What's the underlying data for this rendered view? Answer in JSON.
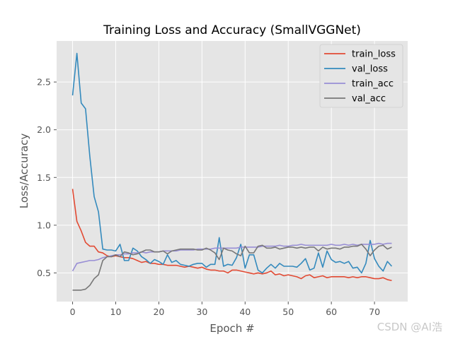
{
  "chart_data": {
    "type": "line",
    "title": "Training Loss and Accuracy (SmallVGGNet)",
    "xlabel": "Epoch #",
    "ylabel": "Loss/Accuracy",
    "xlim": [
      -3.7,
      77.7
    ],
    "ylim": [
      0.2,
      2.93
    ],
    "xticks": [
      0,
      10,
      20,
      30,
      40,
      50,
      60,
      70
    ],
    "xtick_labels": [
      "0",
      "10",
      "20",
      "30",
      "40",
      "50",
      "60",
      "70"
    ],
    "yticks": [
      0.5,
      1.0,
      1.5,
      2.0,
      2.5
    ],
    "ytick_labels": [
      "0.5",
      "1.0",
      "1.5",
      "2.0",
      "2.5"
    ],
    "grid": true,
    "legend_position": "top-right",
    "x": [
      0,
      1,
      2,
      3,
      4,
      5,
      6,
      7,
      8,
      9,
      10,
      11,
      12,
      13,
      14,
      15,
      16,
      17,
      18,
      19,
      20,
      21,
      22,
      23,
      24,
      25,
      26,
      27,
      28,
      29,
      30,
      31,
      32,
      33,
      34,
      35,
      36,
      37,
      38,
      39,
      40,
      41,
      42,
      43,
      44,
      45,
      46,
      47,
      48,
      49,
      50,
      51,
      52,
      53,
      54,
      55,
      56,
      57,
      58,
      59,
      60,
      61,
      62,
      63,
      64,
      65,
      66,
      67,
      68,
      69,
      70,
      71,
      72,
      73,
      74
    ],
    "series": [
      {
        "name": "train_loss",
        "color": "#E24A33",
        "values": [
          1.38,
          1.04,
          0.94,
          0.82,
          0.78,
          0.78,
          0.72,
          0.71,
          0.68,
          0.67,
          0.68,
          0.67,
          0.66,
          0.66,
          0.65,
          0.63,
          0.61,
          0.62,
          0.6,
          0.6,
          0.59,
          0.59,
          0.58,
          0.58,
          0.58,
          0.57,
          0.56,
          0.57,
          0.56,
          0.55,
          0.56,
          0.54,
          0.53,
          0.53,
          0.52,
          0.52,
          0.5,
          0.53,
          0.53,
          0.52,
          0.51,
          0.5,
          0.49,
          0.5,
          0.49,
          0.5,
          0.52,
          0.48,
          0.49,
          0.47,
          0.48,
          0.47,
          0.46,
          0.44,
          0.47,
          0.48,
          0.45,
          0.46,
          0.47,
          0.45,
          0.46,
          0.46,
          0.46,
          0.46,
          0.45,
          0.46,
          0.45,
          0.46,
          0.46,
          0.45,
          0.44,
          0.44,
          0.45,
          0.43,
          0.42
        ]
      },
      {
        "name": "val_loss",
        "color": "#348ABD",
        "values": [
          2.36,
          2.8,
          2.28,
          2.22,
          1.72,
          1.3,
          1.14,
          0.75,
          0.74,
          0.74,
          0.73,
          0.8,
          0.63,
          0.63,
          0.76,
          0.73,
          0.67,
          0.64,
          0.6,
          0.64,
          0.62,
          0.59,
          0.69,
          0.61,
          0.63,
          0.59,
          0.58,
          0.57,
          0.59,
          0.6,
          0.6,
          0.56,
          0.59,
          0.59,
          0.87,
          0.57,
          0.59,
          0.58,
          0.66,
          0.8,
          0.55,
          0.69,
          0.69,
          0.53,
          0.5,
          0.55,
          0.59,
          0.55,
          0.6,
          0.57,
          0.57,
          0.57,
          0.56,
          0.6,
          0.65,
          0.53,
          0.55,
          0.71,
          0.56,
          0.73,
          0.64,
          0.61,
          0.62,
          0.6,
          0.62,
          0.55,
          0.56,
          0.5,
          0.6,
          0.84,
          0.65,
          0.57,
          0.52,
          0.62,
          0.57
        ]
      },
      {
        "name": "train_acc",
        "color": "#988ED5",
        "values": [
          0.52,
          0.6,
          0.61,
          0.62,
          0.63,
          0.63,
          0.64,
          0.66,
          0.67,
          0.68,
          0.69,
          0.69,
          0.7,
          0.7,
          0.71,
          0.71,
          0.72,
          0.71,
          0.72,
          0.72,
          0.72,
          0.73,
          0.73,
          0.73,
          0.73,
          0.74,
          0.74,
          0.74,
          0.74,
          0.75,
          0.75,
          0.75,
          0.75,
          0.76,
          0.76,
          0.76,
          0.76,
          0.76,
          0.76,
          0.77,
          0.77,
          0.77,
          0.77,
          0.77,
          0.78,
          0.78,
          0.78,
          0.78,
          0.79,
          0.78,
          0.78,
          0.79,
          0.79,
          0.8,
          0.79,
          0.79,
          0.79,
          0.79,
          0.79,
          0.79,
          0.8,
          0.79,
          0.79,
          0.8,
          0.79,
          0.8,
          0.79,
          0.8,
          0.8,
          0.8,
          0.8,
          0.81,
          0.8,
          0.81,
          0.81
        ]
      },
      {
        "name": "val_acc",
        "color": "#777777",
        "values": [
          0.32,
          0.32,
          0.32,
          0.33,
          0.37,
          0.44,
          0.48,
          0.63,
          0.67,
          0.67,
          0.69,
          0.67,
          0.72,
          0.71,
          0.69,
          0.7,
          0.72,
          0.74,
          0.74,
          0.72,
          0.72,
          0.73,
          0.7,
          0.73,
          0.74,
          0.75,
          0.75,
          0.75,
          0.75,
          0.74,
          0.74,
          0.76,
          0.74,
          0.71,
          0.64,
          0.76,
          0.74,
          0.73,
          0.7,
          0.68,
          0.78,
          0.71,
          0.71,
          0.78,
          0.79,
          0.76,
          0.76,
          0.77,
          0.75,
          0.76,
          0.77,
          0.77,
          0.76,
          0.77,
          0.76,
          0.77,
          0.77,
          0.73,
          0.77,
          0.75,
          0.76,
          0.76,
          0.75,
          0.77,
          0.77,
          0.78,
          0.78,
          0.8,
          0.75,
          0.68,
          0.74,
          0.78,
          0.79,
          0.75,
          0.77
        ]
      }
    ]
  },
  "watermark": "CSDN @AI浩",
  "colors": {
    "axes_bg": "#E5E5E5",
    "grid": "#FFFFFF",
    "page_bg": "#FFFFFF"
  }
}
